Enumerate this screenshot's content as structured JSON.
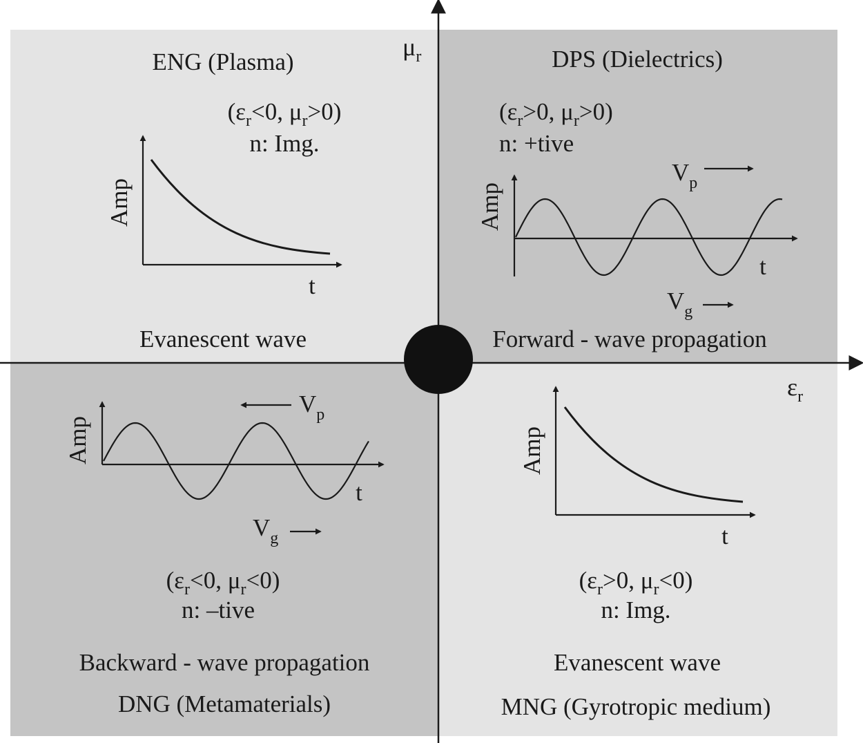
{
  "colors": {
    "light_quadrant": "#e4e4e4",
    "dark_quadrant": "#c4c4c4",
    "ink": "#1a1a1a"
  },
  "axes": {
    "y_symbol": "μ",
    "y_subscript": "r",
    "x_symbol": "ε",
    "x_subscript": "r"
  },
  "quadrants": {
    "top_left": {
      "title": "ENG (Plasma)",
      "condition": "(εr<0, μr>0)",
      "condition_parts": {
        "open": "(ε",
        "s1": "r",
        "mid1": "<0, μ",
        "s2": "r",
        "close": ">0)"
      },
      "index": "n: Img.",
      "wave_type": "Evanescent wave",
      "plot": {
        "y_label": "Amp",
        "x_label": "t",
        "curve": "exponential decay"
      }
    },
    "top_right": {
      "title": "DPS (Dielectrics)",
      "condition": "(εr>0, μr>0)",
      "condition_parts": {
        "open": "(ε",
        "s1": "r",
        "mid1": ">0, μ",
        "s2": "r",
        "close": ">0)"
      },
      "index": "n: +tive",
      "wave_type": "Forward - wave propagation",
      "plot": {
        "y_label": "Amp",
        "x_label": "t",
        "curve": "sine wave",
        "vp_label": "V",
        "vp_sub": "p",
        "vp_direction": "right",
        "vg_label": "V",
        "vg_sub": "g",
        "vg_direction": "right"
      }
    },
    "bottom_left": {
      "title": "DNG (Metamaterials)",
      "condition": "(εr<0, μr<0)",
      "condition_parts": {
        "open": "(ε",
        "s1": "r",
        "mid1": "<0, μ",
        "s2": "r",
        "close": "<0)"
      },
      "index": "n: –tive",
      "wave_type": "Backward - wave propagation",
      "plot": {
        "y_label": "Amp",
        "x_label": "t",
        "curve": "sine wave",
        "vp_label": "V",
        "vp_sub": "p",
        "vp_direction": "left",
        "vg_label": "V",
        "vg_sub": "g",
        "vg_direction": "right"
      }
    },
    "bottom_right": {
      "title": "MNG (Gyrotropic medium)",
      "condition": "(εr>0, μr<0)",
      "condition_parts": {
        "open": "(ε",
        "s1": "r",
        "mid1": ">0, μ",
        "s2": "r",
        "close": "<0)"
      },
      "index": "n: Img.",
      "wave_type": "Evanescent wave",
      "plot": {
        "y_label": "Amp",
        "x_label": "t",
        "curve": "exponential decay"
      }
    }
  }
}
